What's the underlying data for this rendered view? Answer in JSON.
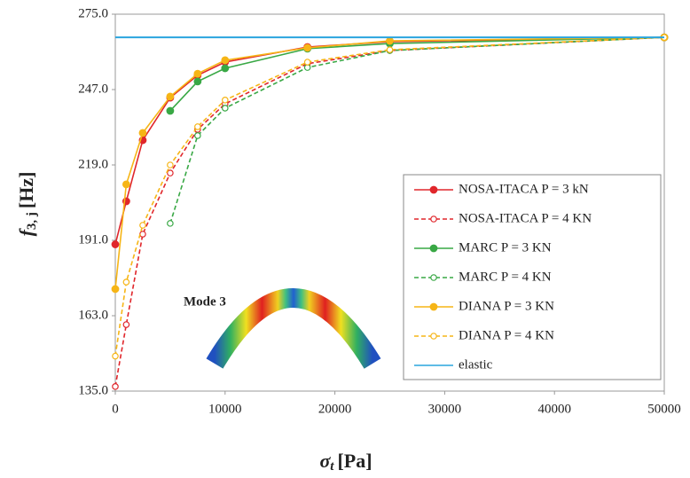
{
  "chart_data": {
    "type": "line",
    "xlabel": {
      "symbol": "σ",
      "sub": "t",
      "unit": "[Pa]"
    },
    "ylabel": {
      "symbol": "f",
      "sub": "3, j",
      "unit": "[Hz]"
    },
    "annotation": "Mode 3",
    "xlim": [
      0,
      50000
    ],
    "xticks": [
      0,
      10000,
      20000,
      30000,
      40000,
      50000
    ],
    "ylim": [
      135,
      275
    ],
    "yticks": [
      {
        "value": 135,
        "label": "135.0"
      },
      {
        "value": 163,
        "label": "163.0"
      },
      {
        "value": 191,
        "label": "191.0"
      },
      {
        "value": 219,
        "label": "219.0"
      },
      {
        "value": 247,
        "label": "247.0"
      },
      {
        "value": 275,
        "label": "275.0"
      }
    ],
    "series": [
      {
        "name": "NOSA-ITACA P = 3 kN",
        "color": "#e0262b",
        "style": "solid",
        "marker": "filled",
        "x": [
          0,
          1000,
          2500,
          5000,
          7500,
          10000,
          17500,
          25000,
          50000
        ],
        "values": [
          189.5,
          205.5,
          228.2,
          244.0,
          252.3,
          257.2,
          262.8,
          264.8,
          266.4
        ]
      },
      {
        "name": "NOSA-ITACA P = 4 KN",
        "color": "#e0262b",
        "style": "dashed",
        "marker": "hollow",
        "x": [
          0,
          1000,
          2500,
          5000,
          7500,
          10000,
          17500,
          25000,
          50000
        ],
        "values": [
          136.7,
          159.7,
          193.3,
          216.0,
          232.2,
          241.7,
          256.6,
          261.5,
          266.4
        ]
      },
      {
        "name": "MARC P = 3 KN",
        "color": "#39a845",
        "style": "solid",
        "marker": "filled",
        "x": [
          5000,
          7500,
          10000,
          17500,
          25000,
          50000
        ],
        "values": [
          239.1,
          250.0,
          254.9,
          262.2,
          264.1,
          266.4
        ]
      },
      {
        "name": "MARC P = 4 KN",
        "color": "#39a845",
        "style": "dashed",
        "marker": "hollow",
        "x": [
          5000,
          7500,
          10000,
          17500,
          25000,
          50000
        ],
        "values": [
          197.3,
          229.9,
          240.1,
          255.2,
          261.5,
          266.4
        ]
      },
      {
        "name": "DIANA P = 3 KN",
        "color": "#f6b516",
        "style": "solid",
        "marker": "filled",
        "x": [
          0,
          1000,
          2500,
          5000,
          7500,
          10000,
          17500,
          25000,
          50000
        ],
        "values": [
          172.9,
          211.8,
          230.9,
          244.4,
          252.9,
          257.9,
          262.5,
          265.1,
          266.4
        ]
      },
      {
        "name": "DIANA P = 4 KN",
        "color": "#f6b516",
        "style": "dashed",
        "marker": "hollow",
        "x": [
          0,
          1000,
          2500,
          5000,
          7500,
          10000,
          17500,
          25000,
          50000
        ],
        "values": [
          148.0,
          175.5,
          196.6,
          219.0,
          233.2,
          243.1,
          257.2,
          261.8,
          266.4
        ]
      },
      {
        "name": "elastic",
        "color": "#2aa5de",
        "style": "solid",
        "marker": "none",
        "x": [
          0,
          50000
        ],
        "values": [
          266.4,
          266.4
        ]
      }
    ]
  }
}
